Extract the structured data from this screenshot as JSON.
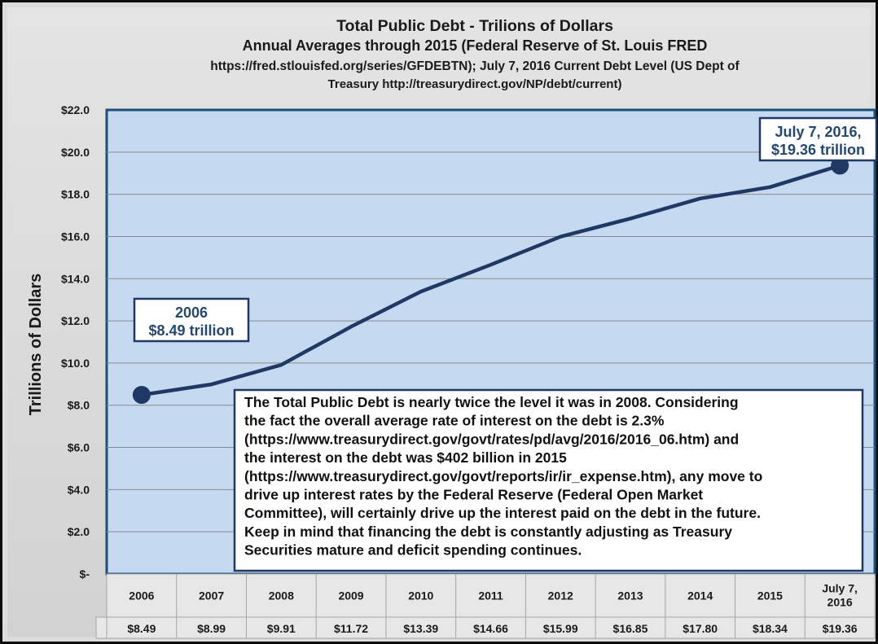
{
  "chart_data": {
    "type": "line",
    "title_lines": [
      "Total Public Debt - Trilions of Dollars",
      "Annual Averages through 2015 (Federal Reserve of St. Louis FRED",
      "https://fred.stlouisfed.org/series/GFDEBTN); July 7, 2016 Current Debt Level (US Dept of",
      "Treasury http://treasurydirect.gov/NP/debt/current)"
    ],
    "ylabel": "Trillions of Dollars",
    "xlabel": "",
    "ylim": [
      0,
      22
    ],
    "ytick_values": [
      0,
      2,
      4,
      6,
      8,
      10,
      12,
      14,
      16,
      18,
      20,
      22
    ],
    "ytick_labels": [
      "$-",
      "$2.0",
      "$4.0",
      "$6.0",
      "$8.0",
      "$10.0",
      "$12.0",
      "$14.0",
      "$16.0",
      "$18.0",
      "$20.0",
      "$22.0"
    ],
    "grid": true,
    "categories": [
      "2006",
      "2007",
      "2008",
      "2009",
      "2010",
      "2011",
      "2012",
      "2013",
      "2014",
      "2015",
      "July 7, 2016"
    ],
    "category_lines": [
      [
        "2006"
      ],
      [
        "2007"
      ],
      [
        "2008"
      ],
      [
        "2009"
      ],
      [
        "2010"
      ],
      [
        "2011"
      ],
      [
        "2012"
      ],
      [
        "2013"
      ],
      [
        "2014"
      ],
      [
        "2015"
      ],
      [
        "July 7,",
        "2016"
      ]
    ],
    "values": [
      8.49,
      8.99,
      9.91,
      11.72,
      13.39,
      14.66,
      15.99,
      16.85,
      17.8,
      18.34,
      19.36
    ],
    "value_labels": [
      "$8.49",
      "$8.99",
      "$9.91",
      "$11.72",
      "$13.39",
      "$14.66",
      "$15.99",
      "$16.85",
      "$17.80",
      "$18.34",
      "$19.36"
    ],
    "marked_points": [
      0,
      10
    ],
    "annotations": [
      {
        "point": 0,
        "lines": [
          "2006",
          "$8.49 trillion"
        ]
      },
      {
        "point": 10,
        "lines": [
          "July 7, 2016,",
          "$19.36 trillion"
        ]
      }
    ],
    "note_lines": [
      "The Total Public Debt is nearly twice the level it was in 2008.  Considering",
      "the fact the overall average rate of interest on the debt is 2.3%",
      "(https://www.treasurydirect.gov/govt/rates/pd/avg/2016/2016_06.htm) and",
      "the interest on the debt was $402 billion in 2015",
      "(https://www.treasurydirect.gov/govt/reports/ir/ir_expense.htm), any move to",
      "drive up interest rates by the Federal Reserve (Federal Open Market",
      "Committee), will certainly drive up the interest paid on the debt in the future.",
      "Keep in mind that financing the debt is constantly adjusting as Treasury",
      "Securities mature and deficit spending continues."
    ],
    "colors": {
      "plot_background": "#c5d9f1",
      "line": "#203864",
      "callout_text": "#24486f",
      "frame_background": "#d9d9d9"
    }
  }
}
